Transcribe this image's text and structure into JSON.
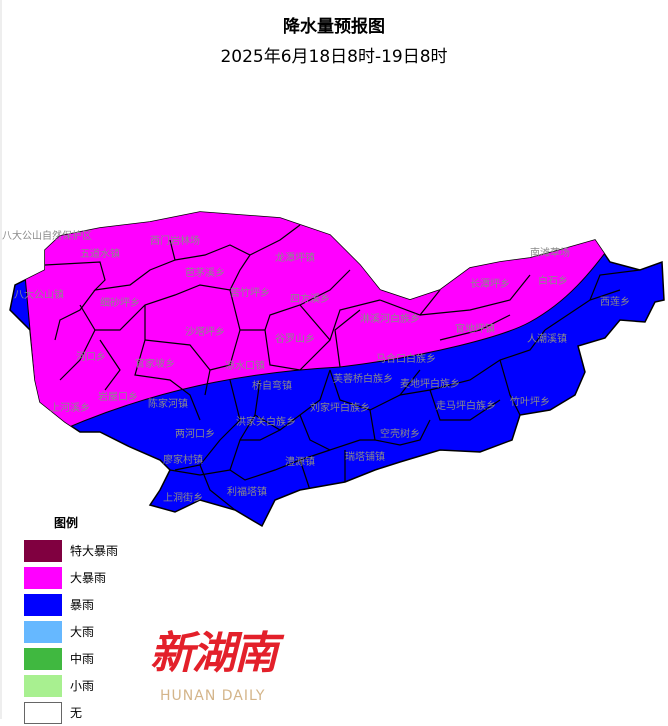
{
  "title": "降水量预报图",
  "subtitle": "2025年6月18日8时-19日8时",
  "colors": {
    "extreme_rainstorm": "#800040",
    "heavy_rainstorm": "#ff00ff",
    "rainstorm": "#0000ff",
    "heavy_rain": "#66b8ff",
    "moderate_rain": "#40b840",
    "light_rain": "#a8f090",
    "none": "#ffffff"
  },
  "map": {
    "heavy_rainstorm_labels": [
      "八大公山自然保护区",
      "五道水镇",
      "西门岩林场",
      "龙潭坪镇",
      "芭茅溪乡",
      "八大公山镇",
      "细砂坪乡",
      "苦竹坪乡",
      "四方溪乡",
      "沙塔坪乡",
      "谷罗山乡",
      "河口乡",
      "官家坡乡",
      "凉水口镇",
      "岩屋口乡",
      "上河溪乡",
      "南滩草场",
      "长潭坪乡",
      "白石乡",
      "淋溪河白族乡",
      "官地坪镇"
    ],
    "rainstorm_labels": [
      "陈家河镇",
      "桥自弯镇",
      "洪家关白族乡",
      "刘家坪白族乡",
      "马合口白族乡",
      "芙蓉桥白族乡",
      "麦地坪白族乡",
      "走马坪白族乡",
      "竹叶坪乡",
      "人潮溪镇",
      "西莲乡",
      "两河口乡",
      "廖家村镇",
      "空壳树乡",
      "瑞塔铺镇",
      "澧源镇",
      "利福塔镇",
      "上洞街乡"
    ]
  },
  "legend": {
    "title": "图例",
    "items": [
      {
        "label": "特大暴雨",
        "color": "#800040"
      },
      {
        "label": "大暴雨",
        "color": "#ff00ff"
      },
      {
        "label": "暴雨",
        "color": "#0000ff"
      },
      {
        "label": "大雨",
        "color": "#66b8ff"
      },
      {
        "label": "中雨",
        "color": "#40b840"
      },
      {
        "label": "小雨",
        "color": "#a8f090"
      },
      {
        "label": "无",
        "color": "#ffffff"
      }
    ]
  },
  "watermark": {
    "cn": "新湖南",
    "en": "HUNAN DAILY"
  }
}
